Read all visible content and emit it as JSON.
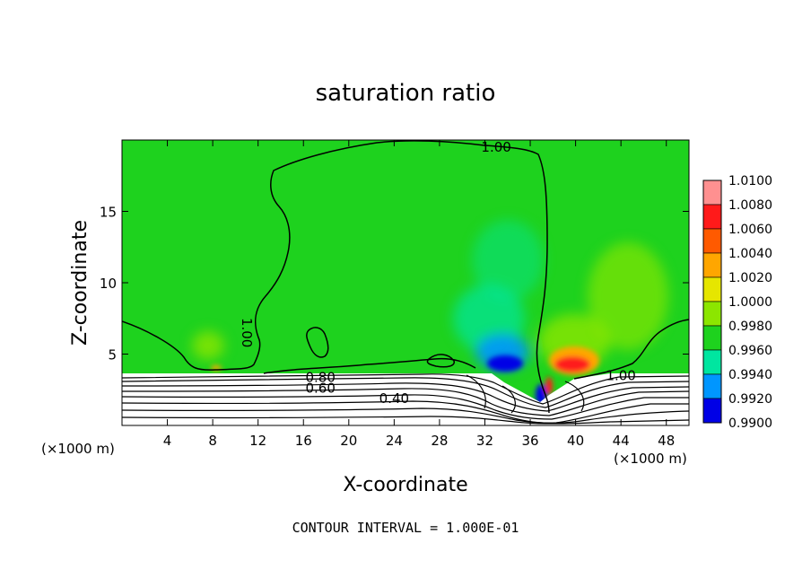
{
  "chart_data": {
    "type": "heatmap",
    "title": "saturation ratio",
    "xlabel": "X-coordinate",
    "ylabel": "Z-coordinate",
    "x_unit_left": "(×1000 m)",
    "x_unit_right": "(×1000 m)",
    "xlim": [
      0,
      50
    ],
    "ylim": [
      0,
      20
    ],
    "x_ticks": [
      4,
      8,
      12,
      16,
      20,
      24,
      28,
      32,
      36,
      40,
      44,
      48
    ],
    "y_ticks": [
      5,
      10,
      15
    ],
    "colorbar": {
      "levels": [
        "1.0100",
        "1.0080",
        "1.0060",
        "1.0040",
        "1.0020",
        "1.0000",
        "0.9980",
        "0.9960",
        "0.9940",
        "0.9920",
        "0.9900"
      ],
      "colors": [
        "#ff9090",
        "#ff1a1a",
        "#ff5a00",
        "#ffa600",
        "#e6e600",
        "#8ce600",
        "#1ed21e",
        "#00e6a0",
        "#0096ff",
        "#0000e6",
        "#6400b4"
      ]
    },
    "contour_labels": [
      {
        "text": "1.00",
        "x": 33.0,
        "y": 19.5
      },
      {
        "text": "1.00",
        "x": 11.0,
        "y": 6.5
      },
      {
        "text": "1.00",
        "x": 44.0,
        "y": 3.5
      },
      {
        "text": "0.80",
        "x": 17.5,
        "y": 3.35
      },
      {
        "text": "0.60",
        "x": 17.5,
        "y": 2.6
      },
      {
        "text": "0.40",
        "x": 24.0,
        "y": 1.9
      }
    ],
    "contour_interval_label": "CONTOUR INTERVAL = 1.000E-01",
    "legend_position": "right"
  }
}
